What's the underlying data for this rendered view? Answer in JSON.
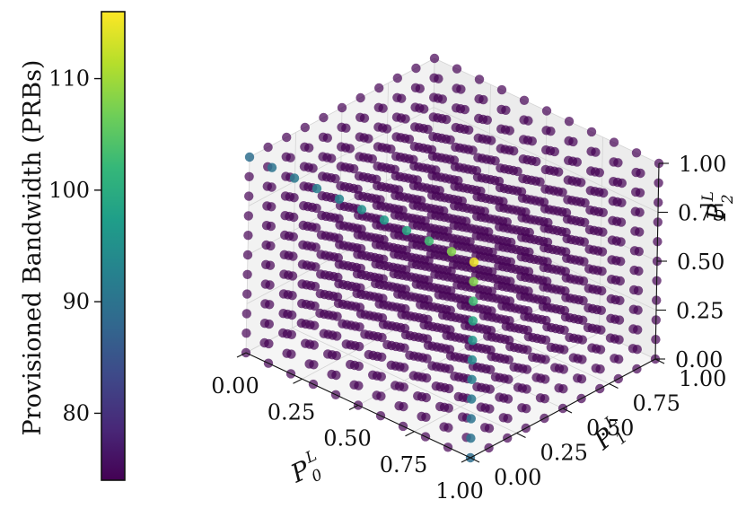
{
  "chart_data": {
    "type": "scatter",
    "title": "",
    "points_description": "11x11x11 grid of points over P_0^L, P_1^L, P_2^L in [0,1]",
    "grid_step": 0.1,
    "axes": {
      "x": {
        "label_main": "P",
        "label_sub": "0",
        "label_sup": "L",
        "range": [
          0,
          1
        ],
        "ticks": [
          "0.00",
          "0.25",
          "0.50",
          "0.75",
          "1.00"
        ]
      },
      "y": {
        "label_main": "P",
        "label_sub": "1",
        "label_sup": "L",
        "range": [
          0,
          1
        ],
        "ticks": [
          "0.00",
          "0.25",
          "0.50",
          "0.75",
          "1.00"
        ]
      },
      "z": {
        "label_main": "P",
        "label_sub": "2",
        "label_sup": "L",
        "range": [
          0,
          1
        ],
        "ticks": [
          "0.00",
          "0.25",
          "0.50",
          "0.75",
          "1.00"
        ]
      }
    },
    "color_variable": "Provisioned Bandwidth (PRBs)",
    "color_range": [
      74,
      116
    ],
    "base_value": 74,
    "colorbar": {
      "label": "Provisioned Bandwidth (PRBs)",
      "ticks": [
        "80",
        "90",
        "100",
        "110"
      ],
      "tick_values": [
        80,
        90,
        100,
        110
      ],
      "colormap": [
        "#440154",
        "#482878",
        "#3e4989",
        "#31688e",
        "#26828e",
        "#1f9e89",
        "#35b779",
        "#6ece58",
        "#b5de2b",
        "#fde725"
      ]
    },
    "highlighted_points": [
      {
        "x": 1.0,
        "y": 0.0,
        "z": 1.0,
        "value": 115
      },
      {
        "x": 1.0,
        "y": 0.0,
        "z": 0.9,
        "value": 108
      },
      {
        "x": 1.0,
        "y": 0.0,
        "z": 0.8,
        "value": 103
      },
      {
        "x": 1.0,
        "y": 0.0,
        "z": 0.7,
        "value": 99
      },
      {
        "x": 1.0,
        "y": 0.0,
        "z": 0.6,
        "value": 96
      },
      {
        "x": 1.0,
        "y": 0.0,
        "z": 0.5,
        "value": 94
      },
      {
        "x": 1.0,
        "y": 0.0,
        "z": 0.4,
        "value": 92
      },
      {
        "x": 1.0,
        "y": 0.0,
        "z": 0.3,
        "value": 91
      },
      {
        "x": 1.0,
        "y": 0.0,
        "z": 0.2,
        "value": 90
      },
      {
        "x": 1.0,
        "y": 0.0,
        "z": 0.1,
        "value": 90
      },
      {
        "x": 1.0,
        "y": 0.0,
        "z": 0.0,
        "value": 89
      },
      {
        "x": 0.9,
        "y": 0.0,
        "z": 1.0,
        "value": 108
      },
      {
        "x": 0.8,
        "y": 0.0,
        "z": 1.0,
        "value": 103
      },
      {
        "x": 0.7,
        "y": 0.0,
        "z": 1.0,
        "value": 99
      },
      {
        "x": 0.6,
        "y": 0.0,
        "z": 1.0,
        "value": 97
      },
      {
        "x": 0.5,
        "y": 0.0,
        "z": 1.0,
        "value": 95
      },
      {
        "x": 0.4,
        "y": 0.0,
        "z": 1.0,
        "value": 93
      },
      {
        "x": 0.3,
        "y": 0.0,
        "z": 1.0,
        "value": 92
      },
      {
        "x": 0.2,
        "y": 0.0,
        "z": 1.0,
        "value": 91
      },
      {
        "x": 0.1,
        "y": 0.0,
        "z": 1.0,
        "value": 90
      },
      {
        "x": 0.0,
        "y": 0.0,
        "z": 1.0,
        "value": 89
      },
      {
        "x": 1.0,
        "y": 0.0,
        "z": 0.0,
        "value": 89
      }
    ]
  }
}
